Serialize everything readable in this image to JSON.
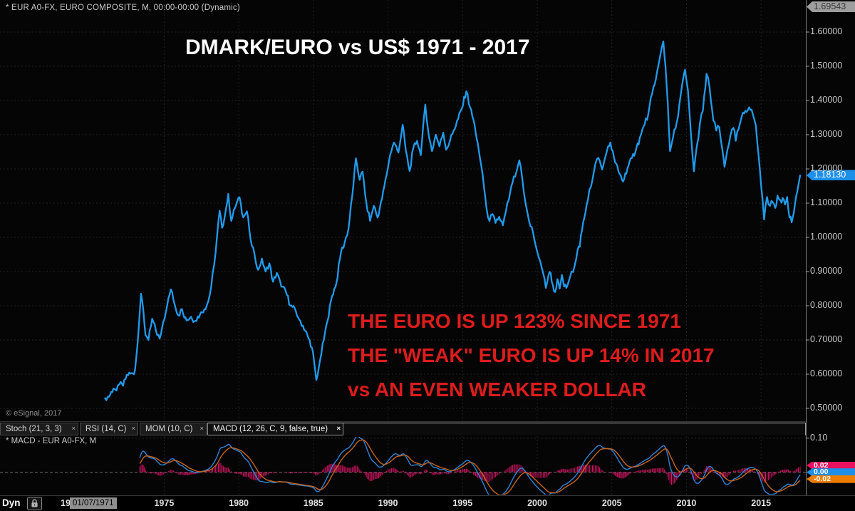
{
  "window": {
    "bg": "#050505"
  },
  "header": {
    "symbol_line": "* EUR A0-FX, EURO COMPOSITE, M, 00:00-00:00 (Dynamic)"
  },
  "main_chart": {
    "title": "DMARK/EURO vs US$ 1971 - 2017",
    "annotation": [
      "THE EURO IS UP 123% SINCE 1971",
      "THE \"WEAK\" EURO IS UP 14% IN 2017",
      "vs AN EVEN WEAKER DOLLAR"
    ],
    "annotation_color": "#dd1c1c",
    "copyright": "© eSignal, 2017",
    "high_badge": "1.69543",
    "last_badge": "1.18130",
    "last_badge_color": "#1e8fe8"
  },
  "tabs": {
    "close_glyph": "×",
    "items": [
      {
        "label": "Stoch (21, 3, 3)",
        "active": false
      },
      {
        "label": "RSI (14, C)",
        "active": false
      },
      {
        "label": "MOM (10, C)",
        "active": false
      },
      {
        "label": "MACD (12, 26, C, 9, false, true)",
        "active": true
      }
    ]
  },
  "macd_panel": {
    "label": "* MACD - EUR A0-FX, M",
    "badges": [
      {
        "label": "0.02",
        "v": 0.02,
        "color": "#e8125f"
      },
      {
        "label": "0.00",
        "v": 0.0,
        "color": "#1e8fe8"
      },
      {
        "label": "-0.02",
        "v": -0.02,
        "color": "#ef7d00"
      }
    ]
  },
  "bottom_bar": {
    "dyn_label": "Dyn",
    "lock_icon": "padlock-icon",
    "clipped_year_prefix": "19",
    "first_bar_date": "01/07/1971"
  },
  "chart_data": {
    "type": "line",
    "title": "DMARK/EURO vs US$ 1971 - 2017",
    "series_name": "EUR A0-FX, EURO COMPOSITE, monthly close",
    "line_color": "#219bec",
    "grid": "dashed",
    "last_value": 1.1813,
    "all_time_high": 1.69543,
    "x_axis": {
      "range": [
        1964,
        2018
      ],
      "ticks": [
        {
          "v": 1975,
          "label": "1975"
        },
        {
          "v": 1980,
          "label": "1980"
        },
        {
          "v": 1985,
          "label": "1985"
        },
        {
          "v": 1990,
          "label": "1990"
        },
        {
          "v": 1995,
          "label": "1995"
        },
        {
          "v": 2000,
          "label": "2000"
        },
        {
          "v": 2005,
          "label": "2005"
        },
        {
          "v": 2010,
          "label": "2010"
        },
        {
          "v": 2015,
          "label": "2015"
        }
      ]
    },
    "y_axis": {
      "range": [
        0.4625,
        1.69375
      ],
      "ticks": [
        {
          "v": 1.6,
          "label": "1.60000"
        },
        {
          "v": 1.5,
          "label": "1.50000"
        },
        {
          "v": 1.4,
          "label": "1.40000"
        },
        {
          "v": 1.3,
          "label": "1.30000"
        },
        {
          "v": 1.2,
          "label": "1.20000"
        },
        {
          "v": 1.1,
          "label": "1.10000"
        },
        {
          "v": 1.0,
          "label": "1.00000"
        },
        {
          "v": 0.9,
          "label": "0.90000"
        },
        {
          "v": 0.8,
          "label": "0.80000"
        },
        {
          "v": 0.7,
          "label": "0.70000"
        },
        {
          "v": 0.6,
          "label": "0.60000"
        },
        {
          "v": 0.5,
          "label": "0.50000"
        }
      ]
    },
    "points": [
      [
        1971.04,
        0.53
      ],
      [
        1971.3,
        0.534
      ],
      [
        1971.6,
        0.558
      ],
      [
        1971.8,
        0.552
      ],
      [
        1972.0,
        0.57
      ],
      [
        1972.25,
        0.566
      ],
      [
        1972.5,
        0.598
      ],
      [
        1972.9,
        0.602
      ],
      [
        1973.05,
        0.612
      ],
      [
        1973.2,
        0.68
      ],
      [
        1973.45,
        0.835
      ],
      [
        1973.6,
        0.788
      ],
      [
        1973.75,
        0.714
      ],
      [
        1973.95,
        0.7
      ],
      [
        1974.2,
        0.762
      ],
      [
        1974.45,
        0.727
      ],
      [
        1974.7,
        0.704
      ],
      [
        1974.95,
        0.754
      ],
      [
        1975.2,
        0.8
      ],
      [
        1975.45,
        0.848
      ],
      [
        1975.7,
        0.804
      ],
      [
        1975.95,
        0.772
      ],
      [
        1976.2,
        0.79
      ],
      [
        1976.5,
        0.757
      ],
      [
        1976.8,
        0.768
      ],
      [
        1977.1,
        0.756
      ],
      [
        1977.4,
        0.774
      ],
      [
        1977.7,
        0.79
      ],
      [
        1977.95,
        0.812
      ],
      [
        1978.15,
        0.855
      ],
      [
        1978.35,
        0.92
      ],
      [
        1978.55,
        1.005
      ],
      [
        1978.72,
        1.078
      ],
      [
        1978.88,
        1.028
      ],
      [
        1979.05,
        1.058
      ],
      [
        1979.3,
        1.127
      ],
      [
        1979.5,
        1.048
      ],
      [
        1979.75,
        1.086
      ],
      [
        1980.05,
        1.117
      ],
      [
        1980.3,
        1.058
      ],
      [
        1980.55,
        1.076
      ],
      [
        1980.8,
        0.992
      ],
      [
        1981.05,
        0.952
      ],
      [
        1981.3,
        0.905
      ],
      [
        1981.55,
        0.938
      ],
      [
        1981.8,
        0.9
      ],
      [
        1982.05,
        0.924
      ],
      [
        1982.3,
        0.87
      ],
      [
        1982.55,
        0.896
      ],
      [
        1982.85,
        0.856
      ],
      [
        1983.15,
        0.842
      ],
      [
        1983.45,
        0.8
      ],
      [
        1983.75,
        0.792
      ],
      [
        1984.05,
        0.76
      ],
      [
        1984.3,
        0.742
      ],
      [
        1984.6,
        0.714
      ],
      [
        1984.9,
        0.678
      ],
      [
        1985.05,
        0.636
      ],
      [
        1985.2,
        0.583
      ],
      [
        1985.45,
        0.642
      ],
      [
        1985.7,
        0.7
      ],
      [
        1985.95,
        0.756
      ],
      [
        1986.25,
        0.828
      ],
      [
        1986.55,
        0.868
      ],
      [
        1986.85,
        0.956
      ],
      [
        1987.1,
        0.985
      ],
      [
        1987.35,
        1.025
      ],
      [
        1987.6,
        1.12
      ],
      [
        1987.85,
        1.231
      ],
      [
        1988.1,
        1.168
      ],
      [
        1988.3,
        1.192
      ],
      [
        1988.55,
        1.1
      ],
      [
        1988.8,
        1.048
      ],
      [
        1989.05,
        1.092
      ],
      [
        1989.3,
        1.058
      ],
      [
        1989.6,
        1.112
      ],
      [
        1989.9,
        1.182
      ],
      [
        1990.15,
        1.242
      ],
      [
        1990.4,
        1.277
      ],
      [
        1990.7,
        1.248
      ],
      [
        1990.98,
        1.329
      ],
      [
        1991.2,
        1.252
      ],
      [
        1991.45,
        1.194
      ],
      [
        1991.7,
        1.262
      ],
      [
        1991.95,
        1.282
      ],
      [
        1992.2,
        1.24
      ],
      [
        1992.5,
        1.388
      ],
      [
        1992.75,
        1.292
      ],
      [
        1992.95,
        1.252
      ],
      [
        1993.2,
        1.3
      ],
      [
        1993.45,
        1.266
      ],
      [
        1993.7,
        1.306
      ],
      [
        1993.9,
        1.256
      ],
      [
        1994.15,
        1.282
      ],
      [
        1994.4,
        1.312
      ],
      [
        1994.7,
        1.346
      ],
      [
        1994.95,
        1.376
      ],
      [
        1995.25,
        1.427
      ],
      [
        1995.5,
        1.38
      ],
      [
        1995.8,
        1.33
      ],
      [
        1996.1,
        1.25
      ],
      [
        1996.35,
        1.18
      ],
      [
        1996.6,
        1.085
      ],
      [
        1996.8,
        1.048
      ],
      [
        1997.0,
        1.068
      ],
      [
        1997.2,
        1.042
      ],
      [
        1997.45,
        1.06
      ],
      [
        1997.7,
        1.035
      ],
      [
        1997.9,
        1.075
      ],
      [
        1998.1,
        1.11
      ],
      [
        1998.35,
        1.16
      ],
      [
        1998.6,
        1.19
      ],
      [
        1998.8,
        1.225
      ],
      [
        1999.0,
        1.17
      ],
      [
        1999.2,
        1.105
      ],
      [
        1999.45,
        1.048
      ],
      [
        1999.63,
        1.03
      ],
      [
        1999.8,
        0.995
      ],
      [
        2000.0,
        0.958
      ],
      [
        2000.2,
        0.93
      ],
      [
        2000.4,
        0.895
      ],
      [
        2000.58,
        0.852
      ],
      [
        2000.75,
        0.888
      ],
      [
        2000.9,
        0.896
      ],
      [
        2001.05,
        0.86
      ],
      [
        2001.2,
        0.84
      ],
      [
        2001.35,
        0.878
      ],
      [
        2001.5,
        0.85
      ],
      [
        2001.65,
        0.89
      ],
      [
        2001.8,
        0.856
      ],
      [
        2001.95,
        0.852
      ],
      [
        2002.1,
        0.87
      ],
      [
        2002.3,
        0.9
      ],
      [
        2002.5,
        0.916
      ],
      [
        2002.7,
        0.962
      ],
      [
        2002.85,
        0.972
      ],
      [
        2003.0,
        1.02
      ],
      [
        2003.3,
        1.092
      ],
      [
        2003.5,
        1.14
      ],
      [
        2003.7,
        1.168
      ],
      [
        2003.9,
        1.216
      ],
      [
        2004.1,
        1.232
      ],
      [
        2004.35,
        1.198
      ],
      [
        2004.6,
        1.24
      ],
      [
        2004.9,
        1.277
      ],
      [
        2005.15,
        1.232
      ],
      [
        2005.45,
        1.192
      ],
      [
        2005.75,
        1.163
      ],
      [
        2006.05,
        1.202
      ],
      [
        2006.35,
        1.232
      ],
      [
        2006.65,
        1.262
      ],
      [
        2006.95,
        1.3
      ],
      [
        2007.2,
        1.33
      ],
      [
        2007.45,
        1.362
      ],
      [
        2007.7,
        1.42
      ],
      [
        2007.95,
        1.462
      ],
      [
        2008.2,
        1.52
      ],
      [
        2008.45,
        1.573
      ],
      [
        2008.6,
        1.498
      ],
      [
        2008.75,
        1.39
      ],
      [
        2008.9,
        1.252
      ],
      [
        2009.1,
        1.292
      ],
      [
        2009.35,
        1.336
      ],
      [
        2009.6,
        1.412
      ],
      [
        2009.9,
        1.49
      ],
      [
        2010.1,
        1.43
      ],
      [
        2010.3,
        1.305
      ],
      [
        2010.5,
        1.193
      ],
      [
        2010.7,
        1.268
      ],
      [
        2010.9,
        1.332
      ],
      [
        2011.1,
        1.37
      ],
      [
        2011.35,
        1.478
      ],
      [
        2011.55,
        1.438
      ],
      [
        2011.8,
        1.342
      ],
      [
        2012.0,
        1.312
      ],
      [
        2012.2,
        1.322
      ],
      [
        2012.4,
        1.258
      ],
      [
        2012.55,
        1.206
      ],
      [
        2012.75,
        1.256
      ],
      [
        2012.95,
        1.298
      ],
      [
        2013.15,
        1.32
      ],
      [
        2013.3,
        1.282
      ],
      [
        2013.5,
        1.318
      ],
      [
        2013.7,
        1.352
      ],
      [
        2013.95,
        1.37
      ],
      [
        2014.2,
        1.38
      ],
      [
        2014.45,
        1.36
      ],
      [
        2014.65,
        1.328
      ],
      [
        2014.85,
        1.232
      ],
      [
        2015.0,
        1.152
      ],
      [
        2015.2,
        1.052
      ],
      [
        2015.4,
        1.118
      ],
      [
        2015.6,
        1.092
      ],
      [
        2015.8,
        1.102
      ],
      [
        2015.95,
        1.086
      ],
      [
        2016.1,
        1.122
      ],
      [
        2016.3,
        1.108
      ],
      [
        2016.45,
        1.115
      ],
      [
        2016.6,
        1.096
      ],
      [
        2016.75,
        1.118
      ],
      [
        2016.9,
        1.058
      ],
      [
        2017.05,
        1.044
      ],
      [
        2017.2,
        1.072
      ],
      [
        2017.35,
        1.12
      ],
      [
        2017.5,
        1.152
      ],
      [
        2017.62,
        1.181
      ]
    ],
    "macd": {
      "params": {
        "fast": 12,
        "slow": 26,
        "signal": 9
      },
      "macd_color": "#2b85d8",
      "signal_color": "#c8641c",
      "hist_color": "#d31263",
      "y_axis": {
        "range": [
          0.106,
          -0.068
        ],
        "ticks": [
          {
            "v": 0.1,
            "label": "0.10"
          }
        ]
      },
      "last": {
        "hist": 0.02,
        "macd": 0.0,
        "signal": -0.02
      }
    }
  }
}
